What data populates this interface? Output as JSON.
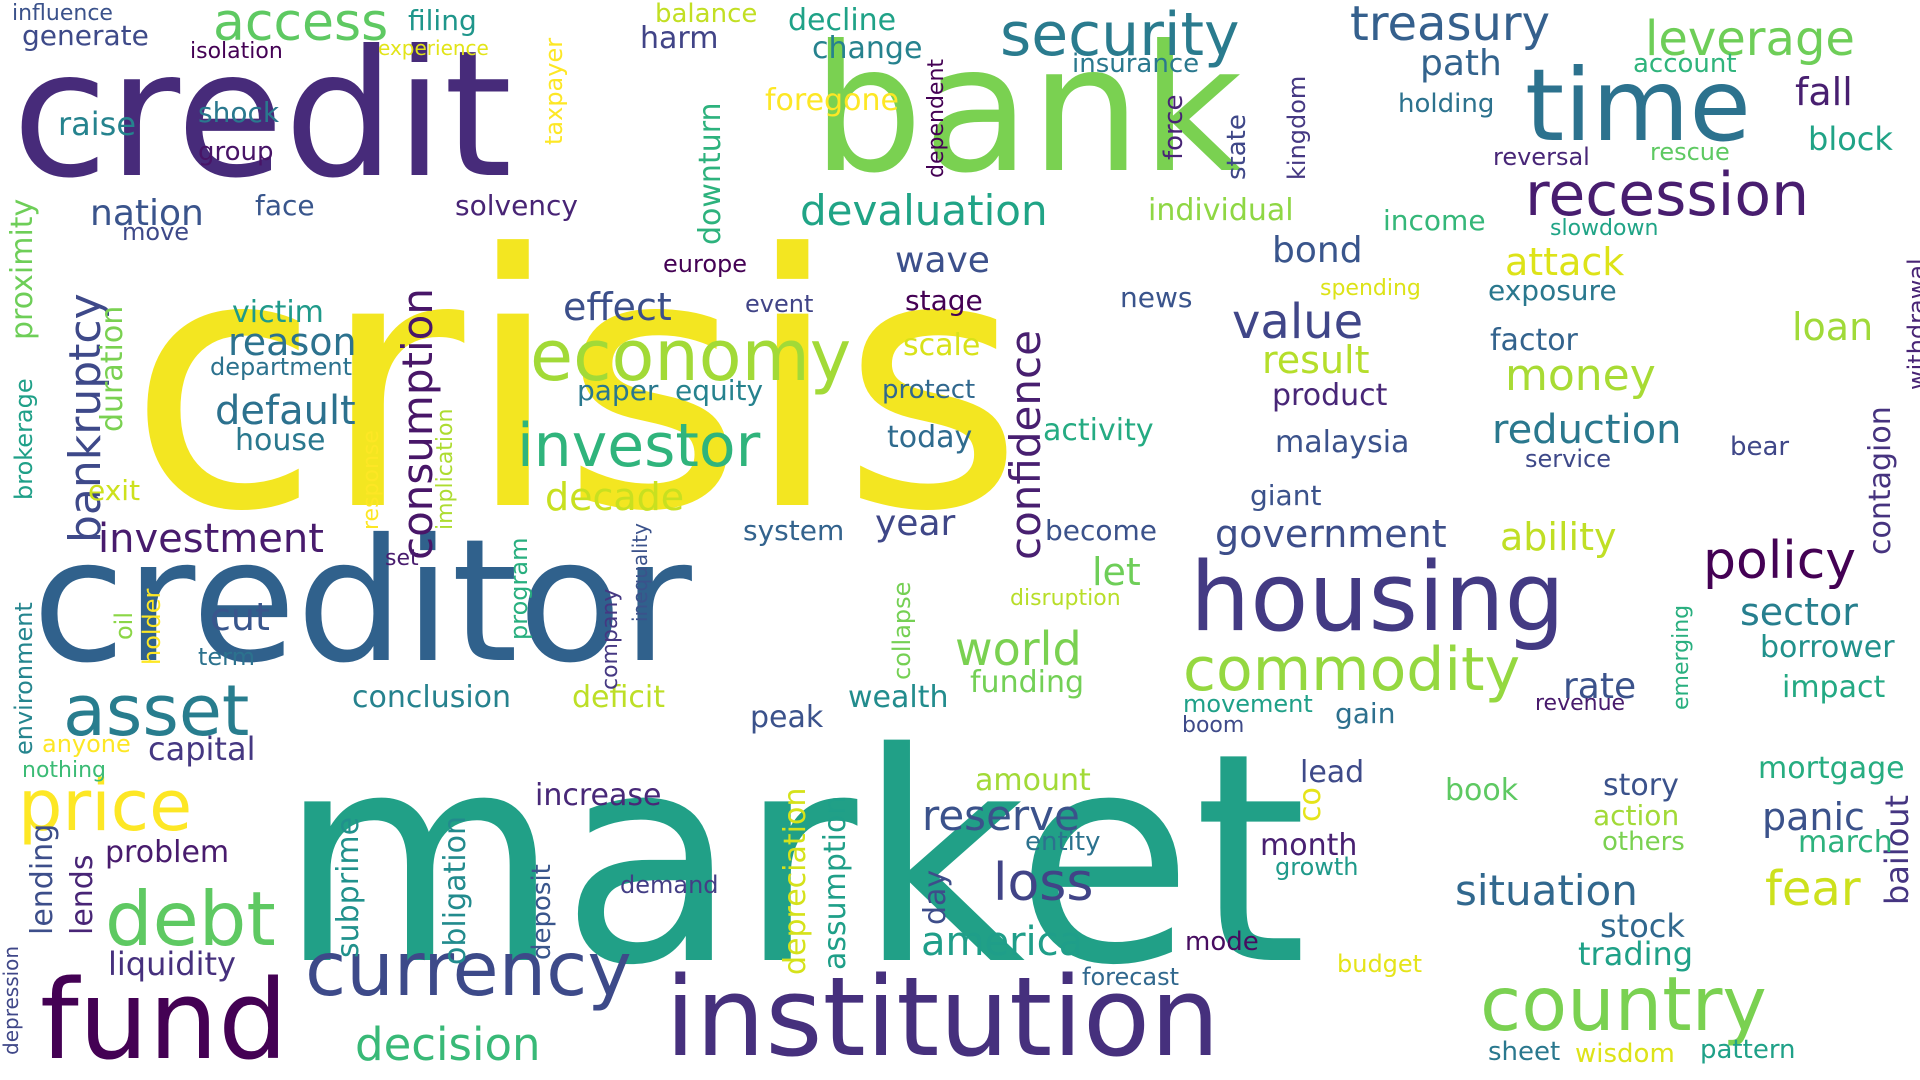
{
  "words": [
    {
      "text": "crisis",
      "color": "#f3e621"
    },
    {
      "text": "market",
      "color": "#21a087"
    },
    {
      "text": "credit",
      "color": "#472b7a"
    },
    {
      "text": "bank",
      "color": "#7ad151"
    },
    {
      "text": "creditor",
      "color": "#30618c"
    },
    {
      "text": "institution",
      "color": "#46307d"
    },
    {
      "text": "fund",
      "color": "#440154"
    },
    {
      "text": "time",
      "color": "#2c728e"
    },
    {
      "text": "housing",
      "color": "#433a83"
    },
    {
      "text": "country",
      "color": "#7ad151"
    },
    {
      "text": "currency",
      "color": "#3d4a89"
    },
    {
      "text": "security",
      "color": "#2a7b8e"
    },
    {
      "text": "recession",
      "color": "#481d6f"
    },
    {
      "text": "economy",
      "color": "#a2da37"
    },
    {
      "text": "commodity",
      "color": "#95d840"
    },
    {
      "text": "investor",
      "color": "#2fb47c"
    },
    {
      "text": "asset",
      "color": "#287d8e"
    },
    {
      "text": "debt",
      "color": "#5ec962"
    },
    {
      "text": "price",
      "color": "#fde725"
    },
    {
      "text": "policy",
      "color": "#440154"
    },
    {
      "text": "access",
      "color": "#5ec962"
    },
    {
      "text": "treasury",
      "color": "#35608d"
    },
    {
      "text": "leverage",
      "color": "#6ece58"
    },
    {
      "text": "bankruptcy",
      "color": "#3e4989"
    },
    {
      "text": "consumption",
      "color": "#481668"
    },
    {
      "text": "confidence",
      "color": "#481f70"
    },
    {
      "text": "world",
      "color": "#7ad151"
    },
    {
      "text": "decision",
      "color": "#38b977"
    },
    {
      "text": "loss",
      "color": "#414487"
    },
    {
      "text": "value",
      "color": "#404688"
    },
    {
      "text": "money",
      "color": "#a8db34"
    },
    {
      "text": "devaluation",
      "color": "#20a486"
    },
    {
      "text": "reduction",
      "color": "#2a788e"
    },
    {
      "text": "situation",
      "color": "#31688e"
    },
    {
      "text": "fear",
      "color": "#cde11d"
    },
    {
      "text": "reserve",
      "color": "#3b528b"
    },
    {
      "text": "america",
      "color": "#1f9e89"
    },
    {
      "text": "investment",
      "color": "#481b6d"
    },
    {
      "text": "default",
      "color": "#2c718e"
    },
    {
      "text": "reason",
      "color": "#2c728e"
    },
    {
      "text": "effect",
      "color": "#3c4f8a"
    },
    {
      "text": "path",
      "color": "#33638d"
    },
    {
      "text": "fall",
      "color": "#481f70"
    },
    {
      "text": "panic",
      "color": "#3b528b"
    },
    {
      "text": "decade",
      "color": "#c8e020"
    },
    {
      "text": "result",
      "color": "#b5de2b"
    },
    {
      "text": "attack",
      "color": "#dde318"
    },
    {
      "text": "government",
      "color": "#3d4e8a"
    },
    {
      "text": "ability",
      "color": "#c0df25"
    },
    {
      "text": "sector",
      "color": "#277f8e"
    },
    {
      "text": "loan",
      "color": "#a0da39"
    },
    {
      "text": "cut",
      "color": "#39568c"
    },
    {
      "text": "rate",
      "color": "#3b528b"
    },
    {
      "text": "year",
      "color": "#3f4788"
    },
    {
      "text": "wave",
      "color": "#3c508b"
    },
    {
      "text": "let",
      "color": "#6ece58"
    },
    {
      "text": "bond",
      "color": "#39558c"
    },
    {
      "text": "nation",
      "color": "#3a548c"
    },
    {
      "text": "raise",
      "color": "#25838e"
    },
    {
      "text": "block",
      "color": "#20a386"
    },
    {
      "text": "bailout",
      "color": "#453581"
    },
    {
      "text": "contagion",
      "color": "#46337f"
    },
    {
      "text": "withdrawal",
      "color": "#482475"
    },
    {
      "text": "stock",
      "color": "#31688e"
    },
    {
      "text": "trading",
      "color": "#1fa187"
    },
    {
      "text": "borrower",
      "color": "#21918c"
    },
    {
      "text": "impact",
      "color": "#23a983"
    },
    {
      "text": "mortgage",
      "color": "#27ad81"
    },
    {
      "text": "march",
      "color": "#2db27d"
    },
    {
      "text": "story",
      "color": "#3b528b"
    },
    {
      "text": "capital",
      "color": "#453882"
    },
    {
      "text": "liquidity",
      "color": "#46307d"
    },
    {
      "text": "problem",
      "color": "#481b6d"
    },
    {
      "text": "increase",
      "color": "#482878"
    },
    {
      "text": "peak",
      "color": "#3b528b"
    },
    {
      "text": "wealth",
      "color": "#228c8d"
    },
    {
      "text": "funding",
      "color": "#73d056"
    },
    {
      "text": "conclusion",
      "color": "#26828e"
    },
    {
      "text": "deficit",
      "color": "#bddf26"
    },
    {
      "text": "month",
      "color": "#482071"
    },
    {
      "text": "amount",
      "color": "#a2da37"
    },
    {
      "text": "lead",
      "color": "#3e4a89"
    },
    {
      "text": "book",
      "color": "#5ec962"
    },
    {
      "text": "duration",
      "color": "#7ad151"
    },
    {
      "text": "victim",
      "color": "#1f9a8a"
    },
    {
      "text": "department",
      "color": "#2c728e"
    },
    {
      "text": "house",
      "color": "#2a788e"
    },
    {
      "text": "paper",
      "color": "#2a788e"
    },
    {
      "text": "equity",
      "color": "#26828e"
    },
    {
      "text": "activity",
      "color": "#25ab82"
    },
    {
      "text": "product",
      "color": "#482677"
    },
    {
      "text": "malaysia",
      "color": "#3b528b"
    },
    {
      "text": "today",
      "color": "#2f6b8e"
    },
    {
      "text": "protect",
      "color": "#31688e"
    },
    {
      "text": "scale",
      "color": "#d8e219"
    },
    {
      "text": "stage",
      "color": "#440154"
    },
    {
      "text": "event",
      "color": "#414487"
    },
    {
      "text": "europe",
      "color": "#440154"
    },
    {
      "text": "news",
      "color": "#3a548c"
    },
    {
      "text": "giant",
      "color": "#3b528b"
    },
    {
      "text": "system",
      "color": "#33638d"
    },
    {
      "text": "become",
      "color": "#3b528b"
    },
    {
      "text": "exposure",
      "color": "#2a788e"
    },
    {
      "text": "factor",
      "color": "#33638d"
    },
    {
      "text": "spending",
      "color": "#dde318"
    },
    {
      "text": "income",
      "color": "#35b779"
    },
    {
      "text": "individual",
      "color": "#8fd744"
    },
    {
      "text": "slowdown",
      "color": "#20a486"
    },
    {
      "text": "service",
      "color": "#3e4989"
    },
    {
      "text": "bear",
      "color": "#3f4788"
    },
    {
      "text": "reversal",
      "color": "#482677"
    },
    {
      "text": "rescue",
      "color": "#5ec962"
    },
    {
      "text": "holding",
      "color": "#2c728e"
    },
    {
      "text": "insurance",
      "color": "#2a788e"
    },
    {
      "text": "account",
      "color": "#2fb47c"
    },
    {
      "text": "harm",
      "color": "#414487"
    },
    {
      "text": "change",
      "color": "#26828e"
    },
    {
      "text": "decline",
      "color": "#1fa287"
    },
    {
      "text": "balance",
      "color": "#c2df23"
    },
    {
      "text": "foregone",
      "color": "#fde725"
    },
    {
      "text": "filing",
      "color": "#1f968b"
    },
    {
      "text": "influence",
      "color": "#3b528b"
    },
    {
      "text": "generate",
      "color": "#3e4a89"
    },
    {
      "text": "isolation",
      "color": "#440154"
    },
    {
      "text": "experience",
      "color": "#e2e418"
    },
    {
      "text": "shock",
      "color": "#2a788e"
    },
    {
      "text": "group",
      "color": "#481467"
    },
    {
      "text": "face",
      "color": "#39568c"
    },
    {
      "text": "move",
      "color": "#3e4989"
    },
    {
      "text": "solvency",
      "color": "#482475"
    },
    {
      "text": "downturn",
      "color": "#2db27d"
    },
    {
      "text": "taxpayer",
      "color": "#fde725"
    },
    {
      "text": "dependent",
      "color": "#440154"
    },
    {
      "text": "force",
      "color": "#482475"
    },
    {
      "text": "state",
      "color": "#3f4788"
    },
    {
      "text": "kingdom",
      "color": "#453882"
    },
    {
      "text": "proximity",
      "color": "#6ece58"
    },
    {
      "text": "brokerage",
      "color": "#1fa088"
    },
    {
      "text": "environment",
      "color": "#25858e"
    },
    {
      "text": "exit",
      "color": "#cde11d"
    },
    {
      "text": "implication",
      "color": "#addc30"
    },
    {
      "text": "response",
      "color": "#fde725"
    },
    {
      "text": "set",
      "color": "#481c6e"
    },
    {
      "text": "program",
      "color": "#29af7f"
    },
    {
      "text": "company",
      "color": "#453882"
    },
    {
      "text": "inequality",
      "color": "#3b528b"
    },
    {
      "text": "collapse",
      "color": "#75d054"
    },
    {
      "text": "disruption",
      "color": "#b8de29"
    },
    {
      "text": "movement",
      "color": "#1fa088"
    },
    {
      "text": "boom",
      "color": "#3e4a89"
    },
    {
      "text": "gain",
      "color": "#2d708e"
    },
    {
      "text": "revenue",
      "color": "#481a6c"
    },
    {
      "text": "emerging",
      "color": "#29af7f"
    },
    {
      "text": "oil",
      "color": "#8bd646"
    },
    {
      "text": "holder",
      "color": "#fde725"
    },
    {
      "text": "term",
      "color": "#2c728e"
    },
    {
      "text": "anyone",
      "color": "#fde725"
    },
    {
      "text": "nothing",
      "color": "#3bbb75"
    },
    {
      "text": "lending",
      "color": "#3d4e8a"
    },
    {
      "text": "lends",
      "color": "#482576"
    },
    {
      "text": "depression",
      "color": "#3f4788"
    },
    {
      "text": "subprime",
      "color": "#21918c"
    },
    {
      "text": "obligation",
      "color": "#228b8d"
    },
    {
      "text": "deposit",
      "color": "#39568c"
    },
    {
      "text": "demand",
      "color": "#433e85"
    },
    {
      "text": "depreciation",
      "color": "#d5e21a"
    },
    {
      "text": "assumption",
      "color": "#1f9f88"
    },
    {
      "text": "day",
      "color": "#3d4d8a"
    },
    {
      "text": "co",
      "color": "#e5e419"
    },
    {
      "text": "entity",
      "color": "#2c728e"
    },
    {
      "text": "growth",
      "color": "#1f9a8a"
    },
    {
      "text": "mode",
      "color": "#470d60"
    },
    {
      "text": "forecast",
      "color": "#31688e"
    },
    {
      "text": "budget",
      "color": "#e5e419"
    },
    {
      "text": "action",
      "color": "#a2da37"
    },
    {
      "text": "others",
      "color": "#7ad151"
    },
    {
      "text": "sheet",
      "color": "#2a788e"
    },
    {
      "text": "wisdom",
      "color": "#dde318"
    },
    {
      "text": "pattern",
      "color": "#1fa188"
    }
  ]
}
